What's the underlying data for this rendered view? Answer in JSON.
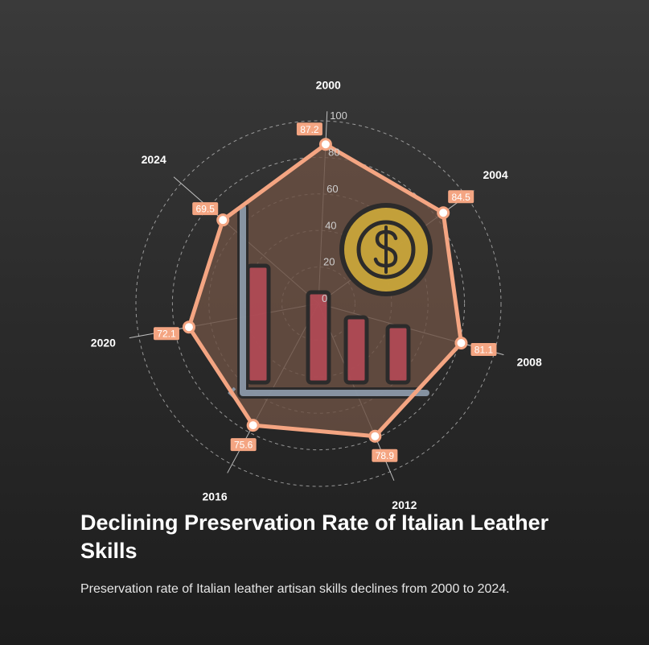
{
  "title": "Declining Preservation Rate of Italian Leather Skills",
  "subtitle": "Preservation rate of Italian leather artisan skills declines from 2000 to 2024.",
  "colors": {
    "series": "#f4a582",
    "fill": "#6b5043",
    "grid": "#bdbdbd",
    "coin": "#c9a53a",
    "bars": "#b04a55",
    "chart_frame": "#8a98a8"
  },
  "icons": [
    "bar-chart-icon",
    "dollar-coin-icon"
  ],
  "chart_data": {
    "type": "radar",
    "categories": [
      "2000",
      "2004",
      "2008",
      "2012",
      "2016",
      "2020",
      "2024"
    ],
    "series": [
      {
        "values": [
          87.2,
          84.5,
          81.1,
          78.9,
          75.6,
          72.1,
          69.5
        ]
      }
    ],
    "value_labels": [
      "87.2",
      "84.5",
      "81.1",
      "78.9",
      "75.6",
      "72.1",
      "69.5"
    ],
    "r_range": [
      0,
      100
    ],
    "r_ticks": [
      "0",
      "20",
      "40",
      "60",
      "80",
      "100"
    ],
    "grid": true,
    "legend": "none"
  }
}
